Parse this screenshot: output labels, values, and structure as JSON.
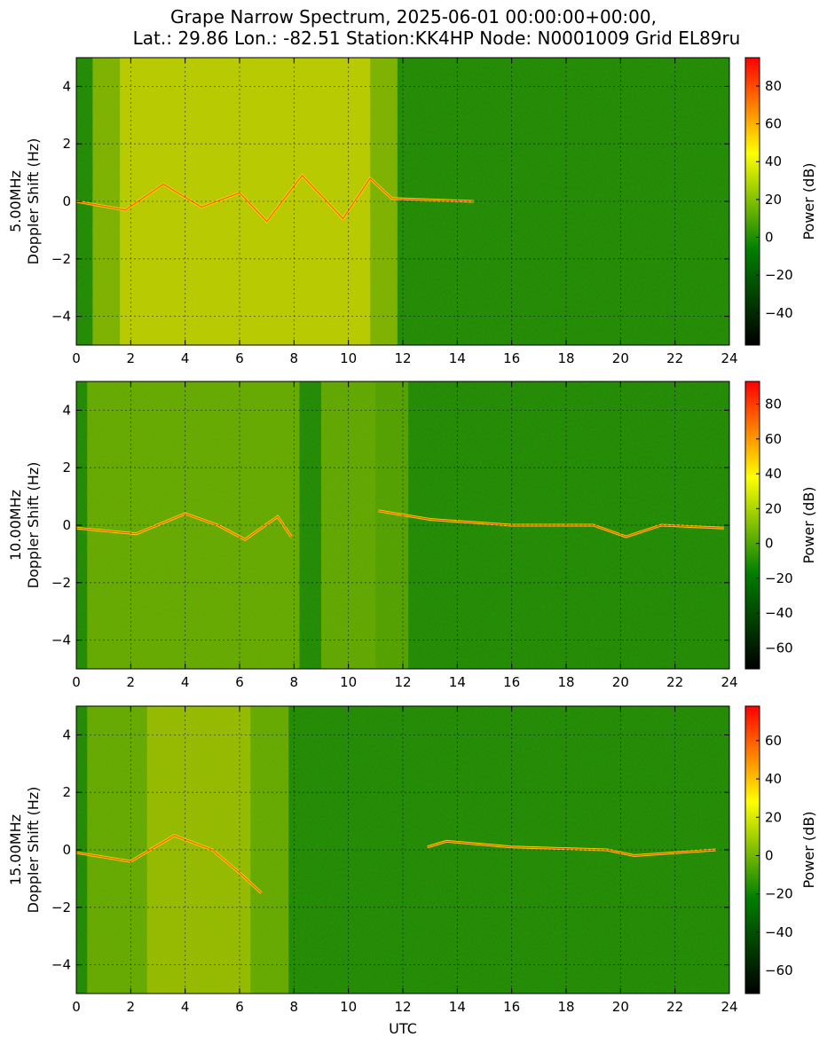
{
  "chart_data": {
    "type": "heatmap",
    "title_line1": "Grape Narrow Spectrum, 2025-06-01 00:00:00+00:00,",
    "title_line2": "Lat.: 29.86 Lon.: -82.51 Station:KK4HP Node: N0001009 Grid EL89ru",
    "xlabel": "UTC",
    "xlim": [
      0,
      24
    ],
    "xticks": [
      "0",
      "2",
      "4",
      "6",
      "8",
      "10",
      "12",
      "14",
      "16",
      "18",
      "20",
      "22",
      "24"
    ],
    "ylim": [
      -5,
      5
    ],
    "yticks": [
      "4",
      "2",
      "0",
      "−2",
      "−4"
    ],
    "grid": true,
    "colormap": [
      "#000000",
      "#007f00",
      "#ffff00",
      "#ff0000"
    ],
    "colorbar_label": "Power (dB)",
    "panels": [
      {
        "ylabel_line1": "5.00MHz",
        "ylabel_line2": "Doppler Shift (Hz)",
        "colorbar_range": [
          -57,
          95
        ],
        "colorbar_ticks": [
          "80",
          "60",
          "40",
          "20",
          "0",
          "−20",
          "−40"
        ],
        "colorbar_tick_values": [
          80,
          60,
          40,
          20,
          0,
          -20,
          -40
        ]
      },
      {
        "ylabel_line1": "10.00MHz",
        "ylabel_line2": "Doppler Shift (Hz)",
        "colorbar_range": [
          -72,
          93
        ],
        "colorbar_ticks": [
          "80",
          "60",
          "40",
          "20",
          "0",
          "−20",
          "−40",
          "−60"
        ],
        "colorbar_tick_values": [
          80,
          60,
          40,
          20,
          0,
          -20,
          -40,
          -60
        ]
      },
      {
        "ylabel_line1": "15.00MHz",
        "ylabel_line2": "Doppler Shift (Hz)",
        "colorbar_range": [
          -72,
          78
        ],
        "colorbar_ticks": [
          "60",
          "40",
          "20",
          "0",
          "−20",
          "−40",
          "−60"
        ],
        "colorbar_tick_values": [
          60,
          40,
          20,
          0,
          -20,
          -40,
          -60
        ]
      }
    ]
  }
}
